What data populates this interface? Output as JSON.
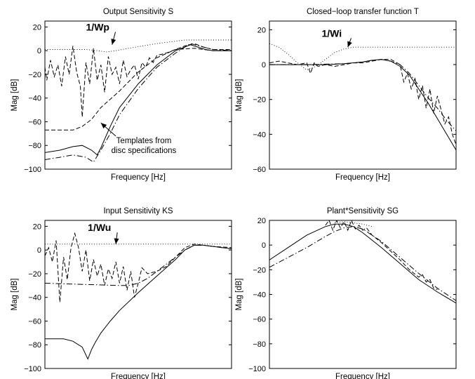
{
  "chart_data": [
    {
      "type": "line",
      "title": "Output Sensitivity S",
      "xlabel": "Frequency [Hz]",
      "ylabel": "Mag [dB]",
      "ylim": [
        -100,
        25
      ],
      "yticks": [
        20,
        0,
        -20,
        -40,
        -60,
        -80,
        -100
      ],
      "xlim": [
        0,
        1
      ],
      "annotations": [
        {
          "label": "1/Wp",
          "bold": true,
          "text_at": [
            0.22,
            17
          ],
          "arrow_to": [
            0.36,
            5
          ]
        },
        {
          "label": "Templates from\ndisc specifications",
          "bold": false,
          "text_at": [
            0.53,
            -78
          ],
          "arrow_to": [
            0.3,
            -61
          ]
        }
      ],
      "series": [
        {
          "style": "solid",
          "x": [
            0,
            0.08,
            0.15,
            0.2,
            0.25,
            0.28,
            0.3,
            0.35,
            0.4,
            0.5,
            0.6,
            0.7,
            0.78,
            0.82,
            0.86,
            0.9,
            1.0
          ],
          "y": [
            -86,
            -84,
            -81,
            -80,
            -84,
            -88,
            -82,
            -64,
            -48,
            -28,
            -12,
            0,
            5,
            3,
            1,
            0,
            0
          ]
        },
        {
          "style": "dashed",
          "x": [
            0,
            0.01,
            0.03,
            0.05,
            0.07,
            0.09,
            0.11,
            0.13,
            0.15,
            0.17,
            0.19,
            0.2,
            0.22,
            0.24,
            0.26,
            0.28,
            0.3,
            0.32,
            0.34,
            0.36,
            0.38,
            0.4,
            0.42,
            0.44,
            0.46,
            0.48,
            0.5,
            0.52,
            0.54,
            0.56,
            0.58,
            0.6,
            0.65,
            0.7,
            0.75,
            0.8,
            0.85,
            0.9,
            1.0
          ],
          "y": [
            -14,
            -25,
            -8,
            -22,
            -12,
            -30,
            -5,
            -20,
            4,
            -18,
            -30,
            -56,
            -10,
            -28,
            2,
            -25,
            -12,
            -35,
            -5,
            -20,
            -14,
            -28,
            -8,
            -22,
            -16,
            -12,
            -24,
            -10,
            -14,
            -6,
            -10,
            -4,
            -2,
            1,
            4,
            6,
            3,
            1,
            1
          ]
        },
        {
          "style": "dashed",
          "x": [
            0,
            0.15,
            0.2,
            0.25,
            0.3,
            0.4,
            0.5,
            0.6,
            0.7,
            0.8,
            0.85,
            0.9,
            1.0
          ],
          "y": [
            -67,
            -67,
            -64,
            -58,
            -48,
            -34,
            -18,
            -6,
            1,
            2,
            1,
            0,
            0
          ]
        },
        {
          "style": "dashdot",
          "x": [
            0,
            0.08,
            0.15,
            0.22,
            0.26,
            0.3,
            0.35,
            0.4,
            0.5,
            0.6,
            0.7,
            0.78,
            0.85,
            0.9,
            1.0
          ],
          "y": [
            -92,
            -90,
            -88,
            -90,
            -94,
            -84,
            -70,
            -54,
            -32,
            -14,
            -2,
            6,
            3,
            1,
            0
          ]
        },
        {
          "style": "dotted",
          "x": [
            0,
            0.12,
            0.22,
            0.28,
            0.33,
            0.38,
            0.45,
            0.6,
            0.75,
            0.85,
            1.0
          ],
          "y": [
            1,
            1,
            1,
            0,
            -1,
            0,
            2,
            6,
            9,
            9,
            9
          ]
        }
      ]
    },
    {
      "type": "line",
      "title": "Closed−loop transfer function T",
      "xlabel": "Frequency [Hz]",
      "ylabel": "Mag [dB]",
      "ylim": [
        -60,
        25
      ],
      "yticks": [
        20,
        0,
        -20,
        -40,
        -60
      ],
      "xlim": [
        0,
        1
      ],
      "annotations": [
        {
          "label": "1/Wi",
          "bold": true,
          "text_at": [
            0.28,
            16
          ],
          "arrow_to": [
            0.42,
            10
          ]
        }
      ],
      "series": [
        {
          "style": "solid",
          "x": [
            0,
            0.1,
            0.2,
            0.3,
            0.4,
            0.5,
            0.55,
            0.6,
            0.65,
            0.7,
            0.75,
            0.8,
            0.85,
            0.9,
            0.95,
            1.0
          ],
          "y": [
            0,
            0,
            0,
            0,
            0.5,
            1.5,
            2.5,
            3,
            2,
            -1,
            -6,
            -14,
            -22,
            -31,
            -40,
            -49
          ]
        },
        {
          "style": "dashed",
          "x": [
            0,
            0.05,
            0.1,
            0.15,
            0.2,
            0.22,
            0.24,
            0.26,
            0.3,
            0.35,
            0.4,
            0.45,
            0.5,
            0.55,
            0.6,
            0.65,
            0.7,
            0.72,
            0.74,
            0.76,
            0.78,
            0.8,
            0.82,
            0.84,
            0.86,
            0.88,
            0.9,
            0.92,
            0.94,
            0.96,
            0.98,
            1.0
          ],
          "y": [
            1,
            2,
            1,
            0,
            1,
            -5,
            1,
            -1,
            0,
            -1,
            0,
            1,
            1,
            2,
            3,
            3,
            0,
            -10,
            -5,
            -14,
            -8,
            -20,
            -12,
            -25,
            -14,
            -28,
            -18,
            -26,
            -34,
            -30,
            -40,
            -46
          ]
        },
        {
          "style": "dashdot",
          "x": [
            0,
            0.2,
            0.4,
            0.5,
            0.55,
            0.6,
            0.65,
            0.7,
            0.75,
            0.8,
            0.85,
            0.9,
            0.95,
            1.0
          ],
          "y": [
            0,
            0,
            0.5,
            1.5,
            2.5,
            3,
            2,
            0,
            -5,
            -12,
            -19,
            -25,
            -32,
            -38
          ]
        },
        {
          "style": "dotted",
          "x": [
            0,
            0.05,
            0.1,
            0.15,
            0.2,
            0.25,
            0.3,
            0.35,
            0.4,
            0.45,
            0.5,
            0.6,
            0.7,
            0.8,
            0.9,
            1.0
          ],
          "y": [
            12,
            10,
            6,
            1,
            -3,
            -1,
            3,
            7,
            9,
            10,
            10,
            10,
            10,
            10,
            10,
            10
          ]
        }
      ]
    },
    {
      "type": "line",
      "title": "Input Sensitivity KS",
      "xlabel": "Frequency [Hz]",
      "ylabel": "Mag [dB]",
      "ylim": [
        -100,
        25
      ],
      "yticks": [
        20,
        0,
        -20,
        -40,
        -60,
        -80,
        -100
      ],
      "xlim": [
        0,
        1
      ],
      "annotations": [
        {
          "label": "1/Wu",
          "bold": true,
          "text_at": [
            0.23,
            16
          ],
          "arrow_to": [
            0.38,
            5
          ]
        }
      ],
      "series": [
        {
          "style": "solid",
          "x": [
            0,
            0.1,
            0.15,
            0.2,
            0.23,
            0.25,
            0.27,
            0.3,
            0.35,
            0.4,
            0.5,
            0.6,
            0.7,
            0.75,
            0.8,
            0.85,
            0.9,
            1.0
          ],
          "y": [
            -75,
            -75,
            -77,
            -82,
            -92,
            -84,
            -78,
            -70,
            -60,
            -51,
            -36,
            -22,
            -8,
            0,
            4,
            4,
            3,
            1
          ]
        },
        {
          "style": "dashed",
          "x": [
            0,
            0.02,
            0.04,
            0.06,
            0.08,
            0.1,
            0.12,
            0.14,
            0.16,
            0.18,
            0.2,
            0.22,
            0.24,
            0.26,
            0.28,
            0.3,
            0.32,
            0.34,
            0.36,
            0.38,
            0.4,
            0.42,
            0.44,
            0.46,
            0.48,
            0.5,
            0.52,
            0.55,
            0.6,
            0.65,
            0.7,
            0.75,
            0.8,
            0.85,
            0.9,
            1.0
          ],
          "y": [
            -5,
            2,
            -10,
            8,
            -44,
            -6,
            -25,
            2,
            14,
            2,
            -18,
            0,
            -26,
            -8,
            -22,
            -12,
            -30,
            -16,
            -24,
            -10,
            -28,
            -14,
            -34,
            -18,
            -40,
            -28,
            -15,
            -20,
            -18,
            -14,
            -6,
            2,
            5,
            4,
            3,
            2
          ]
        },
        {
          "style": "dashdot",
          "x": [
            0,
            0.4,
            0.45,
            0.5,
            0.55,
            0.6,
            0.65,
            0.7,
            0.75,
            0.8,
            0.85,
            0.9,
            1.0
          ],
          "y": [
            -28,
            -30,
            -30,
            -28,
            -24,
            -18,
            -12,
            -6,
            0,
            4,
            4,
            3,
            1
          ]
        },
        {
          "style": "dotted",
          "x": [
            0,
            0.2,
            0.4,
            0.6,
            0.8,
            1.0
          ],
          "y": [
            5,
            5,
            5,
            5,
            5,
            5
          ]
        }
      ]
    },
    {
      "type": "line",
      "title": "Plant*Sensitivity SG",
      "xlabel": "Frequency [Hz]",
      "ylabel": "Mag [dB]",
      "ylim": [
        -100,
        20
      ],
      "yticks": [
        20,
        0,
        -20,
        -40,
        -60,
        -80,
        -100
      ],
      "xlim": [
        0,
        1
      ],
      "annotations": [],
      "series": [
        {
          "style": "solid",
          "x": [
            0,
            0.1,
            0.2,
            0.3,
            0.35,
            0.4,
            0.45,
            0.5,
            0.6,
            0.7,
            0.8,
            0.9,
            1.0
          ],
          "y": [
            -12,
            -2,
            8,
            15,
            17,
            17,
            15,
            10,
            -2,
            -15,
            -28,
            -38,
            -47
          ]
        },
        {
          "style": "dashed",
          "x": [
            0.3,
            0.32,
            0.34,
            0.36,
            0.38,
            0.4,
            0.42,
            0.44,
            0.46,
            0.48,
            0.5,
            0.52,
            0.55,
            0.6,
            0.65,
            0.7,
            0.75,
            0.8,
            0.82,
            0.84,
            0.86,
            0.88,
            0.9
          ],
          "y": [
            16,
            20,
            12,
            20,
            14,
            19,
            12,
            20,
            13,
            16,
            12,
            14,
            8,
            2,
            -5,
            -12,
            -20,
            -26,
            -24,
            -30,
            -28,
            -35,
            -36
          ]
        },
        {
          "style": "dashdot",
          "x": [
            0,
            0.1,
            0.2,
            0.3,
            0.35,
            0.4,
            0.45,
            0.5,
            0.6,
            0.7,
            0.8,
            0.9,
            1.0
          ],
          "y": [
            -18,
            -10,
            -2,
            7,
            11,
            14,
            15,
            13,
            3,
            -10,
            -23,
            -35,
            -45
          ]
        },
        {
          "style": "dotted",
          "x": [
            0.35,
            0.4,
            0.45,
            0.5,
            0.55
          ],
          "y": [
            18,
            19,
            18,
            17,
            15
          ]
        }
      ]
    }
  ]
}
